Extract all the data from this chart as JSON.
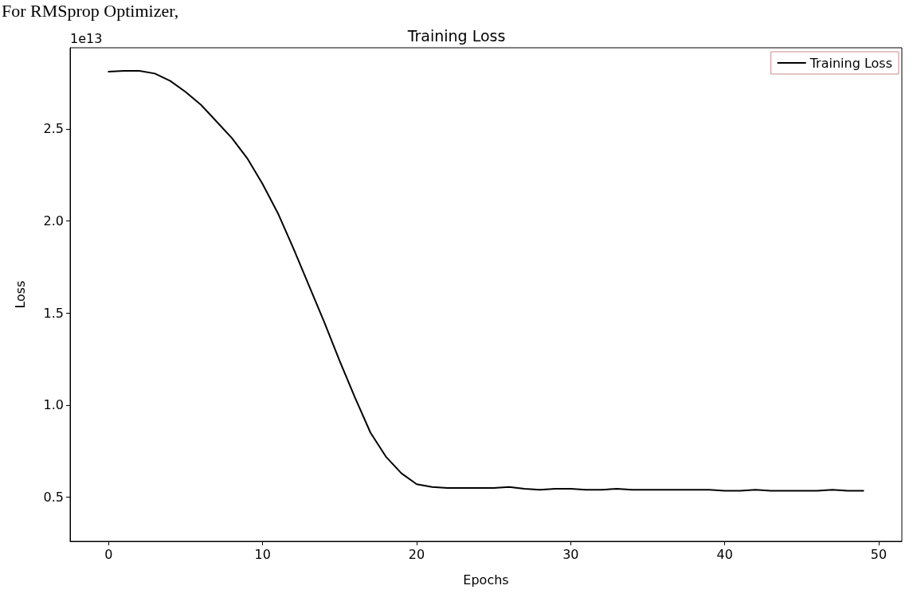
{
  "chart_data": {
    "type": "line",
    "title": "Training Loss",
    "xlabel": "Epochs",
    "ylabel": "Loss",
    "annotations": [
      "For RMSprop Optimizer,",
      "1e13"
    ],
    "x": [
      0,
      1,
      2,
      3,
      4,
      5,
      6,
      7,
      8,
      9,
      10,
      11,
      12,
      13,
      14,
      15,
      16,
      17,
      18,
      19,
      20,
      21,
      22,
      23,
      24,
      25,
      26,
      27,
      28,
      29,
      30,
      31,
      32,
      33,
      34,
      35,
      36,
      37,
      38,
      39,
      40,
      41,
      42,
      43,
      44,
      45,
      46,
      47,
      48,
      49
    ],
    "series": [
      {
        "name": "Training Loss",
        "color": "#000000",
        "values": [
          2.81,
          2.815,
          2.815,
          2.8,
          2.76,
          2.7,
          2.63,
          2.54,
          2.45,
          2.34,
          2.2,
          2.04,
          1.85,
          1.65,
          1.45,
          1.24,
          1.04,
          0.85,
          0.72,
          0.63,
          0.57,
          0.555,
          0.55,
          0.55,
          0.55,
          0.55,
          0.555,
          0.545,
          0.54,
          0.545,
          0.545,
          0.54,
          0.54,
          0.545,
          0.54,
          0.54,
          0.54,
          0.54,
          0.54,
          0.54,
          0.535,
          0.535,
          0.54,
          0.535,
          0.535,
          0.535,
          0.535,
          0.54,
          0.535,
          0.535
        ]
      }
    ],
    "xlim": [
      -2.5,
      51.5
    ],
    "xticks": [
      0,
      10,
      20,
      30,
      40,
      50
    ],
    "ylim": [
      0.26,
      2.94
    ],
    "yticks": [
      {
        "value": 0.5,
        "label": "0.5"
      },
      {
        "value": 1,
        "label": "1.0"
      },
      {
        "value": 1.5,
        "label": "1.5"
      },
      {
        "value": 2,
        "label": "2.0"
      },
      {
        "value": 2.5,
        "label": "2.5"
      }
    ],
    "grid": false,
    "legend": "top right",
    "marker": "none",
    "line_style": "solid"
  }
}
